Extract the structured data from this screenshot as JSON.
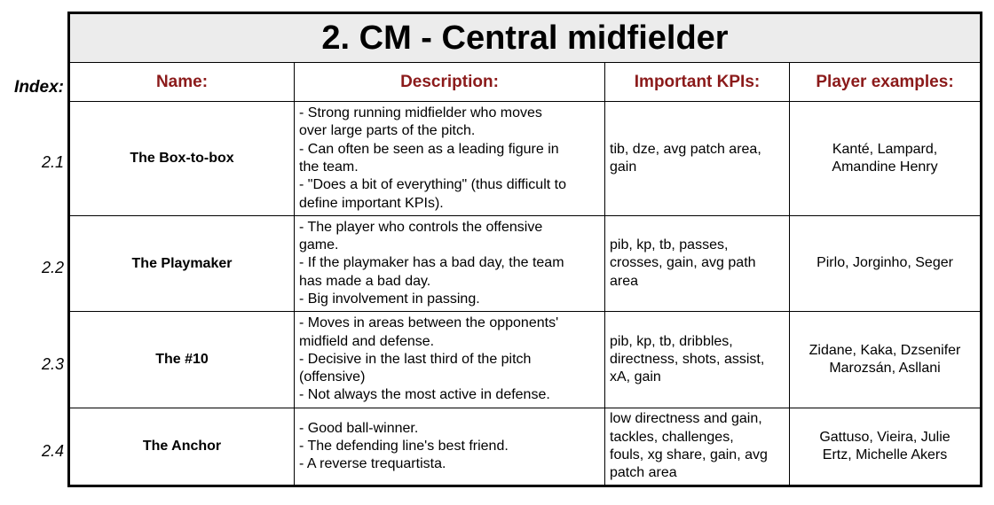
{
  "title": "2. CM - Central midfielder",
  "index_label": "Index:",
  "headers": {
    "name": "Name:",
    "description": "Description:",
    "kpis": "Important KPIs:",
    "examples": "Player examples:"
  },
  "rows": [
    {
      "index": "2.1",
      "name": "The Box-to-box",
      "description": [
        "- Strong running midfielder who moves",
        "over large parts of the pitch.",
        "- Can often be seen as a leading figure in",
        "the team.",
        "- \"Does a bit of everything\" (thus difficult to",
        "define important KPIs)."
      ],
      "kpis": [
        "tib, dze, avg patch area,",
        "gain"
      ],
      "examples": [
        "Kanté, Lampard,",
        "Amandine Henry"
      ]
    },
    {
      "index": "2.2",
      "name": "The Playmaker",
      "description": [
        "- The player who controls the offensive",
        "game.",
        "- If the playmaker has a bad day, the team",
        "has made a bad day.",
        "- Big involvement in passing."
      ],
      "kpis": [
        "pib, kp, tb, passes,",
        "crosses, gain, avg path",
        "area"
      ],
      "examples": [
        "Pirlo, Jorginho, Seger"
      ]
    },
    {
      "index": "2.3",
      "name": "The #10",
      "description": [
        "- Moves in areas between the opponents'",
        "midfield and defense.",
        "- Decisive in the last third of the pitch",
        "(offensive)",
        "- Not always the most active in defense."
      ],
      "kpis": [
        "pib, kp, tb, dribbles,",
        "directness, shots, assist,",
        "xA, gain"
      ],
      "examples": [
        "Zidane, Kaka, Dzsenifer",
        "Marozsán, Asllani"
      ]
    },
    {
      "index": "2.4",
      "name": "The Anchor",
      "description": [
        "- Good ball-winner.",
        "- The defending line's best friend.",
        "- A reverse trequartista."
      ],
      "kpis": [
        "low directness and gain,",
        "tackles, challenges,",
        "fouls, xg share, gain, avg",
        "patch area"
      ],
      "examples": [
        "Gattuso, Vieira, Julie",
        "Ertz, Michelle Akers"
      ]
    }
  ]
}
